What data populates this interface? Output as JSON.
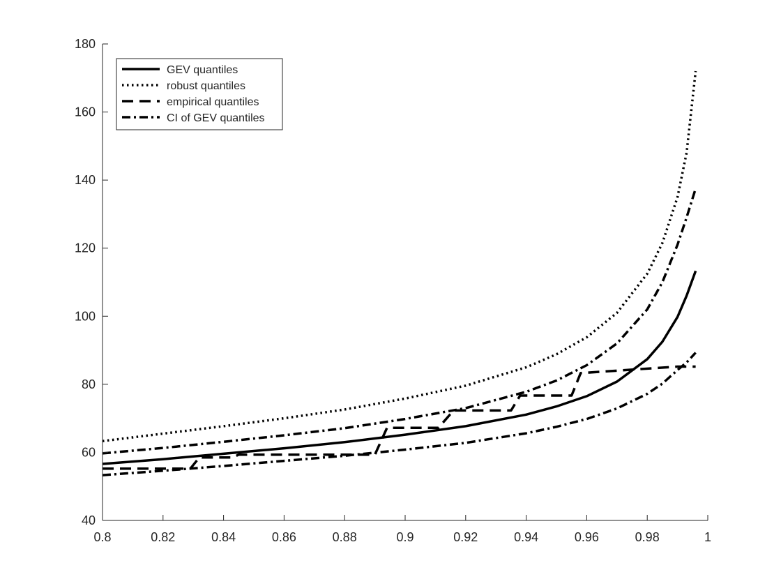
{
  "chart_data": {
    "type": "line",
    "title": "",
    "xlabel": "",
    "ylabel": "",
    "xlim": [
      0.8,
      1.0
    ],
    "ylim": [
      40,
      180
    ],
    "xticks": [
      "0.8",
      "0.82",
      "0.84",
      "0.86",
      "0.88",
      "0.9",
      "0.92",
      "0.94",
      "0.96",
      "0.98",
      "1"
    ],
    "yticks": [
      "40",
      "60",
      "80",
      "100",
      "120",
      "140",
      "160",
      "180"
    ],
    "grid": false,
    "legend_position": "top-left",
    "series": [
      {
        "name": "GEV quantiles",
        "style": "solid",
        "color": "#000000",
        "x": [
          0.8,
          0.82,
          0.84,
          0.86,
          0.88,
          0.9,
          0.92,
          0.94,
          0.95,
          0.96,
          0.97,
          0.98,
          0.985,
          0.99,
          0.993,
          0.996
        ],
        "y": [
          56.6,
          58.0,
          59.6,
          61.2,
          63.0,
          65.2,
          67.7,
          71.1,
          73.5,
          76.5,
          80.8,
          87.4,
          92.5,
          99.8,
          106,
          113.3
        ]
      },
      {
        "name": "robust quantiles",
        "style": "dotted",
        "color": "#000000",
        "x": [
          0.8,
          0.82,
          0.84,
          0.86,
          0.88,
          0.9,
          0.92,
          0.94,
          0.95,
          0.96,
          0.97,
          0.98,
          0.985,
          0.99,
          0.993,
          0.996
        ],
        "y": [
          63.3,
          65.5,
          67.7,
          70.0,
          72.6,
          75.8,
          79.6,
          85.0,
          88.8,
          93.8,
          101.0,
          112.5,
          121.5,
          135.0,
          148.0,
          172.0
        ]
      },
      {
        "name": "empirical quantiles",
        "style": "dashed",
        "color": "#000000",
        "x": [
          0.8,
          0.829,
          0.832,
          0.843,
          0.845,
          0.89,
          0.894,
          0.911,
          0.916,
          0.935,
          0.938,
          0.955,
          0.958,
          0.99,
          0.996
        ],
        "y": [
          55.2,
          55.2,
          58.5,
          58.5,
          59.3,
          59.3,
          67.2,
          67.2,
          72.3,
          72.3,
          76.7,
          76.7,
          83.3,
          85.2,
          85.2
        ]
      },
      {
        "name": "CI of GEV quantiles",
        "style": "dashdot",
        "color": "#000000",
        "x": [
          0.8,
          0.82,
          0.84,
          0.86,
          0.88,
          0.9,
          0.92,
          0.94,
          0.95,
          0.96,
          0.97,
          0.98,
          0.985,
          0.99,
          0.993,
          0.996
        ],
        "y": [
          59.7,
          61.3,
          63.1,
          65.0,
          67.1,
          69.8,
          73.0,
          77.8,
          81.1,
          85.6,
          92.0,
          102.0,
          110.0,
          121.0,
          129.0,
          137.5
        ]
      },
      {
        "name": "",
        "style": "dashdot",
        "color": "#000000",
        "x": [
          0.8,
          0.82,
          0.84,
          0.86,
          0.88,
          0.9,
          0.92,
          0.94,
          0.95,
          0.96,
          0.97,
          0.98,
          0.985,
          0.99,
          0.993,
          0.996
        ],
        "y": [
          53.3,
          54.6,
          56.0,
          57.5,
          59.0,
          60.8,
          62.8,
          65.6,
          67.5,
          69.8,
          72.9,
          77.2,
          80.2,
          84.2,
          86.4,
          89.3
        ]
      }
    ]
  }
}
